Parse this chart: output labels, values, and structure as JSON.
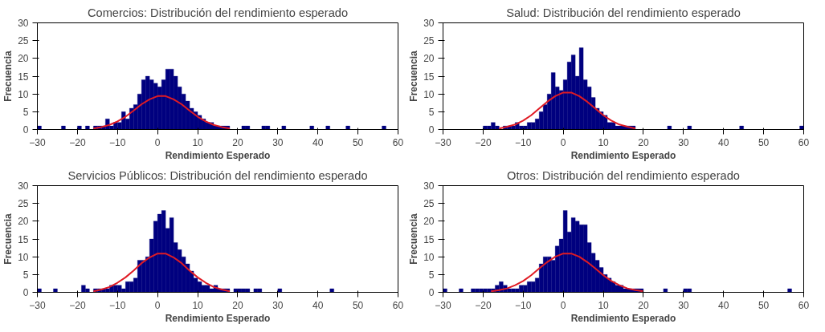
{
  "chart_data": [
    {
      "type": "histogram",
      "title": "Comercios: Distribución del rendimiento esperado",
      "xlabel": "Rendimiento Esperado",
      "ylabel": "Frecuencia",
      "color": "#00007f",
      "xlim": [
        -30,
        60
      ],
      "xticks": [
        -30,
        -20,
        -10,
        0,
        10,
        20,
        30,
        40,
        50,
        60
      ],
      "ylim": [
        0,
        30
      ],
      "yticks": [
        0,
        5,
        10,
        15,
        20,
        25,
        30
      ],
      "bins": [
        -30,
        -29,
        -28,
        -27,
        -26,
        -25,
        -24,
        -23,
        -22,
        -21,
        -20,
        -19,
        -18,
        -17,
        -16,
        -15,
        -14,
        -13,
        -12,
        -11,
        -10,
        -9,
        -8,
        -7,
        -6,
        -5,
        -4,
        -3,
        -2,
        -1,
        0,
        1,
        2,
        3,
        4,
        5,
        6,
        7,
        8,
        9,
        10,
        11,
        12,
        13,
        14,
        15,
        16,
        17,
        18,
        19,
        20,
        21,
        22,
        23,
        24,
        25,
        26,
        27,
        28,
        29,
        30,
        31,
        32,
        33,
        34,
        35,
        36,
        37,
        38,
        39,
        40,
        41,
        42,
        43,
        44,
        45,
        46,
        47,
        48,
        49,
        50,
        51,
        52,
        53,
        54,
        55,
        56,
        57,
        58,
        59,
        60
      ],
      "values": [
        1,
        0,
        0,
        0,
        0,
        0,
        1,
        0,
        0,
        0,
        1,
        0,
        1,
        0,
        1,
        1,
        1,
        3,
        1,
        2,
        2,
        5,
        3,
        6,
        7,
        10,
        14,
        15,
        14,
        13,
        12,
        14,
        17,
        17,
        15,
        12,
        10,
        8,
        6,
        5,
        4,
        3,
        2,
        2,
        1,
        1,
        1,
        1,
        0,
        0,
        0,
        1,
        1,
        0,
        0,
        0,
        1,
        1,
        0,
        0,
        0,
        1,
        0,
        0,
        0,
        0,
        0,
        0,
        1,
        0,
        0,
        0,
        1,
        0,
        0,
        0,
        0,
        1,
        0,
        0,
        0,
        0,
        0,
        0,
        0,
        0,
        1,
        0,
        0,
        0
      ],
      "series": [
        {
          "type": "line",
          "color": "#e01b24",
          "x": [
            -16,
            -14,
            -12,
            -10,
            -8,
            -6,
            -4,
            -2,
            0,
            2,
            4,
            6,
            8,
            10,
            12,
            14,
            16,
            18
          ],
          "values": [
            0.3,
            0.7,
            1.3,
            2.3,
            3.6,
            5.3,
            7.1,
            8.5,
            9.4,
            9.4,
            8.5,
            7.1,
            5.3,
            3.6,
            2.3,
            1.3,
            0.7,
            0.3
          ]
        }
      ]
    },
    {
      "type": "histogram",
      "title": "Salud: Distribución del rendimiento esperado",
      "xlabel": "Rendimiento Esperado",
      "ylabel": "Frecuencia",
      "color": "#00007f",
      "xlim": [
        -30,
        60
      ],
      "xticks": [
        -30,
        -20,
        -10,
        0,
        10,
        20,
        30,
        40,
        50,
        60
      ],
      "ylim": [
        0,
        30
      ],
      "yticks": [
        0,
        5,
        10,
        15,
        20,
        25,
        30
      ],
      "bins": [
        -30,
        -29,
        -28,
        -27,
        -26,
        -25,
        -24,
        -23,
        -22,
        -21,
        -20,
        -19,
        -18,
        -17,
        -16,
        -15,
        -14,
        -13,
        -12,
        -11,
        -10,
        -9,
        -8,
        -7,
        -6,
        -5,
        -4,
        -3,
        -2,
        -1,
        0,
        1,
        2,
        3,
        4,
        5,
        6,
        7,
        8,
        9,
        10,
        11,
        12,
        13,
        14,
        15,
        16,
        17,
        18,
        19,
        20,
        21,
        22,
        23,
        24,
        25,
        26,
        27,
        28,
        29,
        30,
        31,
        32,
        33,
        34,
        35,
        36,
        37,
        38,
        39,
        40,
        41,
        42,
        43,
        44,
        45,
        46,
        47,
        48,
        49,
        50,
        51,
        52,
        53,
        54,
        55,
        56,
        57,
        58,
        59,
        60
      ],
      "values": [
        0,
        0,
        0,
        0,
        0,
        0,
        0,
        0,
        0,
        0,
        1,
        1,
        2,
        1,
        0,
        1,
        1,
        1,
        2,
        1,
        1,
        2,
        2,
        3,
        5,
        7,
        10,
        16,
        12,
        11,
        14,
        19,
        21,
        15,
        23,
        14,
        12,
        9,
        6,
        5,
        4,
        2,
        2,
        1,
        1,
        1,
        1,
        1,
        0,
        0,
        0,
        0,
        0,
        0,
        0,
        0,
        1,
        0,
        0,
        0,
        0,
        1,
        0,
        0,
        0,
        0,
        0,
        0,
        0,
        0,
        0,
        0,
        0,
        0,
        1,
        0,
        0,
        0,
        0,
        0,
        0,
        0,
        0,
        0,
        0,
        0,
        0,
        0,
        0,
        1
      ],
      "series": [
        {
          "type": "line",
          "color": "#e01b24",
          "x": [
            -16,
            -14,
            -12,
            -10,
            -8,
            -6,
            -4,
            -2,
            0,
            2,
            4,
            6,
            8,
            10,
            12,
            14,
            16,
            18
          ],
          "values": [
            0.3,
            0.8,
            1.4,
            2.5,
            4.0,
            5.9,
            7.8,
            9.4,
            10.4,
            10.4,
            9.4,
            7.8,
            5.9,
            4.0,
            2.5,
            1.4,
            0.8,
            0.3
          ]
        }
      ]
    },
    {
      "type": "histogram",
      "title": "Servicios Públicos: Distribución del rendimiento esperado",
      "xlabel": "Rendimiento Esperado",
      "ylabel": "Frecuencia",
      "color": "#00007f",
      "xlim": [
        -30,
        60
      ],
      "xticks": [
        -30,
        -20,
        -10,
        0,
        10,
        20,
        30,
        40,
        50,
        60
      ],
      "ylim": [
        0,
        30
      ],
      "yticks": [
        0,
        5,
        10,
        15,
        20,
        25,
        30
      ],
      "bins": [
        -30,
        -29,
        -28,
        -27,
        -26,
        -25,
        -24,
        -23,
        -22,
        -21,
        -20,
        -19,
        -18,
        -17,
        -16,
        -15,
        -14,
        -13,
        -12,
        -11,
        -10,
        -9,
        -8,
        -7,
        -6,
        -5,
        -4,
        -3,
        -2,
        -1,
        0,
        1,
        2,
        3,
        4,
        5,
        6,
        7,
        8,
        9,
        10,
        11,
        12,
        13,
        14,
        15,
        16,
        17,
        18,
        19,
        20,
        21,
        22,
        23,
        24,
        25,
        26,
        27,
        28,
        29,
        30,
        31,
        32,
        33,
        34,
        35,
        36,
        37,
        38,
        39,
        40,
        41,
        42,
        43,
        44,
        45,
        46,
        47,
        48,
        49,
        50,
        51,
        52,
        53,
        54,
        55,
        56,
        57,
        58,
        59,
        60
      ],
      "values": [
        1,
        0,
        0,
        0,
        1,
        0,
        0,
        0,
        0,
        0,
        0,
        2,
        1,
        0,
        1,
        1,
        1,
        1,
        2,
        2,
        2,
        1,
        3,
        3,
        4,
        9,
        9,
        10,
        15,
        20,
        22,
        23,
        18,
        21,
        14,
        12,
        10,
        8,
        6,
        4,
        3,
        2,
        2,
        1,
        2,
        1,
        1,
        1,
        0,
        1,
        1,
        1,
        1,
        0,
        1,
        1,
        0,
        0,
        0,
        0,
        1,
        0,
        0,
        0,
        0,
        0,
        0,
        0,
        0,
        0,
        0,
        0,
        0,
        1,
        0,
        0,
        0,
        0,
        0,
        0,
        0,
        0,
        0,
        0,
        0,
        0,
        0,
        0,
        0,
        0
      ],
      "series": [
        {
          "type": "line",
          "color": "#e01b24",
          "x": [
            -16,
            -14,
            -12,
            -10,
            -8,
            -6,
            -4,
            -2,
            0,
            2,
            4,
            6,
            8,
            10,
            12,
            14,
            16,
            18
          ],
          "values": [
            0.3,
            0.8,
            1.5,
            2.7,
            4.2,
            6.1,
            8.2,
            9.8,
            10.9,
            10.9,
            9.8,
            8.2,
            6.1,
            4.2,
            2.7,
            1.5,
            0.8,
            0.3
          ]
        }
      ]
    },
    {
      "type": "histogram",
      "title": "Otros: Distribución del rendimiento esperado",
      "xlabel": "Rendimiento Esperado",
      "ylabel": "Frecuencia",
      "color": "#00007f",
      "xlim": [
        -30,
        60
      ],
      "xticks": [
        -30,
        -20,
        -10,
        0,
        10,
        20,
        30,
        40,
        50,
        60
      ],
      "ylim": [
        0,
        30
      ],
      "yticks": [
        0,
        5,
        10,
        15,
        20,
        25,
        30
      ],
      "bins": [
        -30,
        -29,
        -28,
        -27,
        -26,
        -25,
        -24,
        -23,
        -22,
        -21,
        -20,
        -19,
        -18,
        -17,
        -16,
        -15,
        -14,
        -13,
        -12,
        -11,
        -10,
        -9,
        -8,
        -7,
        -6,
        -5,
        -4,
        -3,
        -2,
        -1,
        0,
        1,
        2,
        3,
        4,
        5,
        6,
        7,
        8,
        9,
        10,
        11,
        12,
        13,
        14,
        15,
        16,
        17,
        18,
        19,
        20,
        21,
        22,
        23,
        24,
        25,
        26,
        27,
        28,
        29,
        30,
        31,
        32,
        33,
        34,
        35,
        36,
        37,
        38,
        39,
        40,
        41,
        42,
        43,
        44,
        45,
        46,
        47,
        48,
        49,
        50,
        51,
        52,
        53,
        54,
        55,
        56,
        57,
        58,
        59,
        60
      ],
      "values": [
        1,
        0,
        0,
        0,
        1,
        0,
        0,
        1,
        1,
        1,
        1,
        1,
        1,
        2,
        3,
        2,
        1,
        1,
        1,
        2,
        2,
        3,
        3,
        4,
        8,
        10,
        10,
        9,
        13,
        15,
        23,
        17,
        21,
        20,
        19,
        19,
        14,
        11,
        9,
        7,
        5,
        4,
        3,
        2,
        2,
        1,
        1,
        1,
        1,
        1,
        0,
        0,
        0,
        0,
        0,
        1,
        0,
        0,
        0,
        0,
        1,
        1,
        0,
        0,
        0,
        0,
        0,
        0,
        0,
        0,
        0,
        0,
        0,
        0,
        0,
        0,
        0,
        0,
        0,
        0,
        0,
        0,
        0,
        0,
        0,
        0,
        1,
        0,
        0,
        0
      ],
      "series": [
        {
          "type": "line",
          "color": "#e01b24",
          "x": [
            -18,
            -16,
            -14,
            -12,
            -10,
            -8,
            -6,
            -4,
            -2,
            0,
            2,
            4,
            6,
            8,
            10,
            12,
            14,
            16,
            18,
            20
          ],
          "values": [
            0.3,
            0.6,
            1.1,
            2.0,
            3.2,
            4.8,
            6.7,
            8.5,
            10.0,
            10.9,
            10.9,
            10.0,
            8.5,
            6.7,
            4.8,
            3.2,
            2.0,
            1.1,
            0.6,
            0.3
          ]
        }
      ]
    }
  ]
}
